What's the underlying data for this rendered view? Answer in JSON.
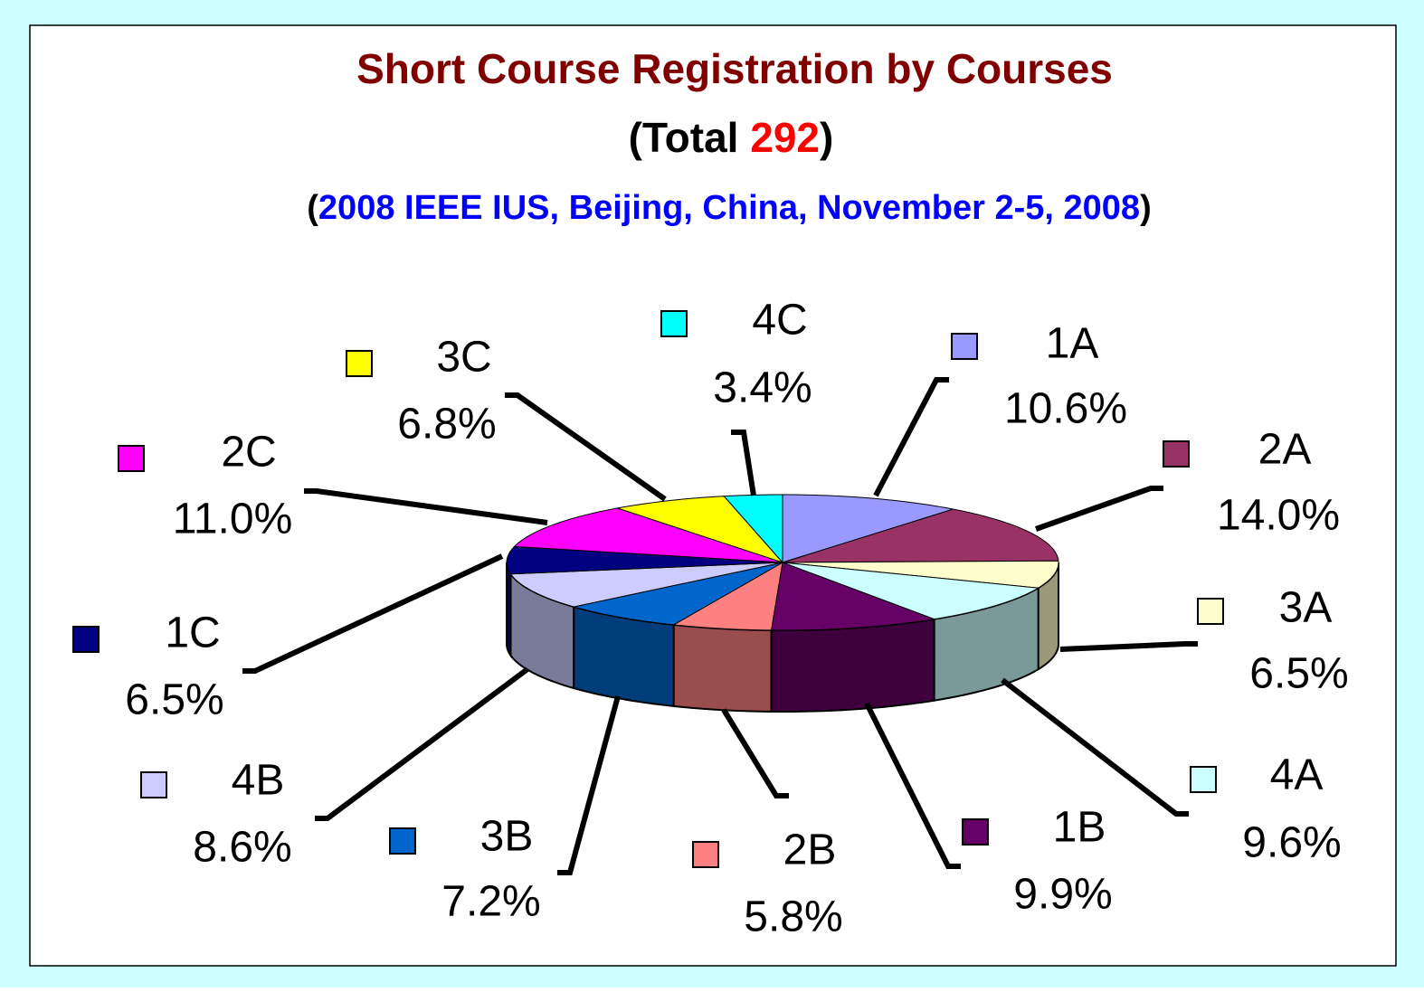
{
  "chart_data": {
    "type": "pie3d",
    "title": "Short Course Registration by Courses",
    "subtitle": [
      {
        "text": "(Total ",
        "color": "#000000"
      },
      {
        "text": "292",
        "color": "#ff0000"
      },
      {
        "text": ")",
        "color": "#000000"
      }
    ],
    "subtitle2": [
      {
        "text": "(",
        "color": "#000000"
      },
      {
        "text": "2008 IEEE IUS, Beijing, China, November 2-5, 2008",
        "color": "#0000ff"
      },
      {
        "text": ")",
        "color": "#000000"
      }
    ],
    "categories": [
      "1A",
      "2A",
      "3A",
      "4A",
      "1B",
      "2B",
      "3B",
      "4B",
      "1C",
      "2C",
      "3C",
      "4C"
    ],
    "values": [
      10.6,
      14.0,
      6.5,
      9.6,
      9.9,
      5.8,
      7.2,
      8.6,
      6.5,
      11.0,
      6.8,
      3.4
    ],
    "value_labels": [
      "10.6%",
      "14.0%",
      "6.5%",
      "9.6%",
      "9.9%",
      "5.8%",
      "7.2%",
      "8.6%",
      "6.5%",
      "11.0%",
      "6.8%",
      "3.4%"
    ],
    "colors": [
      "#9999ff",
      "#993366",
      "#ffffcc",
      "#ccffff",
      "#660066",
      "#ff8080",
      "#0066cc",
      "#ccccff",
      "#000080",
      "#ff00ff",
      "#ffff00",
      "#00ffff"
    ]
  }
}
